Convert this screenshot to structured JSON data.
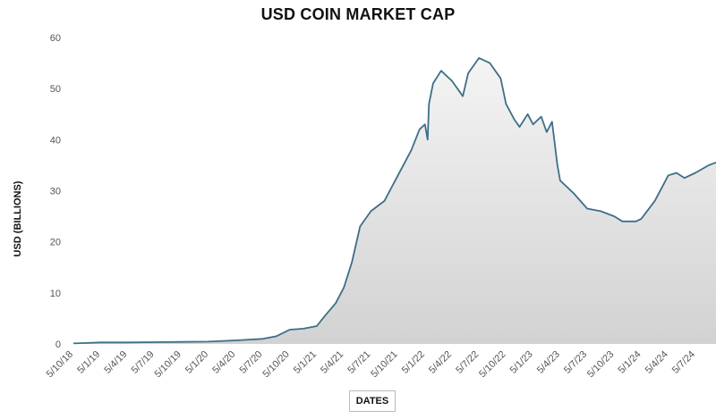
{
  "chart_data": {
    "type": "area",
    "title": "USD COIN MARKET CAP",
    "xlabel": "DATES",
    "ylabel": "USD (BILLIONS)",
    "ylim": [
      0,
      60
    ],
    "yticks": [
      0,
      10,
      20,
      30,
      40,
      50,
      60
    ],
    "xticks": [
      "5/10/18",
      "5/1/19",
      "5/4/19",
      "5/7/19",
      "5/10/19",
      "5/1/20",
      "5/4/20",
      "5/7/20",
      "5/10/20",
      "5/1/21",
      "5/4/21",
      "5/7/21",
      "5/10/21",
      "5/1/22",
      "5/4/22",
      "5/7/22",
      "5/10/22",
      "5/1/23",
      "5/4/23",
      "5/7/23",
      "5/10/23",
      "5/1/24",
      "5/4/24",
      "5/7/24"
    ],
    "grid": false,
    "legend": "none",
    "colors": {
      "line": "#3d6f86",
      "fill_top": "#f4f4f4",
      "fill_bottom": "#d2d2d2"
    },
    "x": [
      "5/10/18",
      "5/1/19",
      "5/4/19",
      "5/7/19",
      "5/10/19",
      "5/1/20",
      "5/4/20",
      "5/7/20",
      "5/10/20",
      "5/1/21",
      "5/4/21",
      "5/7/21",
      "5/10/21",
      "5/1/22",
      "5/4/22",
      "5/7/22",
      "5/10/22",
      "5/1/23",
      "5/4/23",
      "5/7/23",
      "5/10/23",
      "5/1/24",
      "5/4/24",
      "5/7/24"
    ],
    "values": [
      0.1,
      0.3,
      0.3,
      0.4,
      0.4,
      0.5,
      0.8,
      1.2,
      2.8,
      3.5,
      11,
      26,
      33,
      43,
      51.5,
      55,
      47,
      43,
      32,
      26.5,
      25,
      24,
      32.5,
      34
    ],
    "series_detail": [
      [
        0,
        0.1
      ],
      [
        0.5,
        0.2
      ],
      [
        1,
        0.3
      ],
      [
        2,
        0.3
      ],
      [
        3,
        0.35
      ],
      [
        4,
        0.4
      ],
      [
        5,
        0.45
      ],
      [
        6,
        0.7
      ],
      [
        7,
        1.0
      ],
      [
        7.5,
        1.5
      ],
      [
        8,
        2.8
      ],
      [
        8.5,
        3.0
      ],
      [
        9,
        3.5
      ],
      [
        9.3,
        5.5
      ],
      [
        9.7,
        8.0
      ],
      [
        10,
        11.0
      ],
      [
        10.3,
        16.0
      ],
      [
        10.6,
        23.0
      ],
      [
        11,
        26.0
      ],
      [
        11.5,
        28.0
      ],
      [
        12,
        33.0
      ],
      [
        12.5,
        38.0
      ],
      [
        12.8,
        42.0
      ],
      [
        13,
        43.0
      ],
      [
        13.1,
        40.0
      ],
      [
        13.15,
        47.0
      ],
      [
        13.3,
        51.0
      ],
      [
        13.6,
        53.5
      ],
      [
        14,
        51.5
      ],
      [
        14.4,
        48.5
      ],
      [
        14.6,
        53.0
      ],
      [
        15,
        56.0
      ],
      [
        15.4,
        55.0
      ],
      [
        15.8,
        52.0
      ],
      [
        16,
        47.0
      ],
      [
        16.3,
        44.0
      ],
      [
        16.5,
        42.5
      ],
      [
        16.8,
        45.0
      ],
      [
        17,
        43.0
      ],
      [
        17.3,
        44.5
      ],
      [
        17.5,
        41.5
      ],
      [
        17.7,
        43.5
      ],
      [
        17.9,
        35.0
      ],
      [
        18,
        32.0
      ],
      [
        18.5,
        29.5
      ],
      [
        19,
        26.5
      ],
      [
        19.5,
        26.0
      ],
      [
        20,
        25.0
      ],
      [
        20.3,
        24.0
      ],
      [
        20.8,
        24.0
      ],
      [
        21,
        24.5
      ],
      [
        21.5,
        28.0
      ],
      [
        22,
        33.0
      ],
      [
        22.3,
        33.5
      ],
      [
        22.6,
        32.5
      ],
      [
        23,
        33.5
      ],
      [
        23.5,
        35.0
      ],
      [
        24,
        36.0
      ],
      [
        24.3,
        36.2
      ]
    ]
  }
}
